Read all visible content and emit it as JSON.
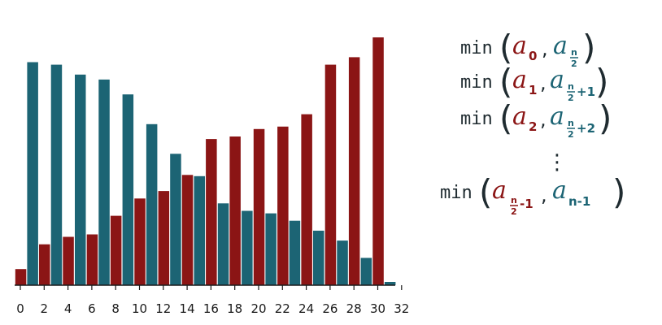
{
  "colors": {
    "teal": "#1c6474",
    "red": "#8b1515",
    "axis": "#1a1a1a",
    "text": "#1f2b30"
  },
  "chart_data": {
    "type": "bar",
    "title": "",
    "xlabel": "",
    "ylabel": "",
    "xlim": [
      0,
      32
    ],
    "xticks": [
      "0",
      "2",
      "4",
      "6",
      "8",
      "10",
      "12",
      "14",
      "16",
      "18",
      "20",
      "22",
      "24",
      "26",
      "28",
      "30",
      "32"
    ],
    "grid": false,
    "series": [
      {
        "color": "teal",
        "x": [
          1,
          3,
          5,
          7,
          9,
          11,
          13,
          15,
          17,
          19,
          21,
          23,
          25,
          27,
          29,
          31
        ],
        "values": [
          90,
          89,
          85,
          83,
          77,
          65,
          53,
          44,
          33,
          30,
          29,
          26,
          22,
          18,
          11,
          1.3
        ]
      },
      {
        "color": "red",
        "x": [
          0,
          2,
          4,
          6,
          8,
          10,
          12,
          14,
          16,
          18,
          20,
          22,
          24,
          26,
          28,
          30
        ],
        "values": [
          6.5,
          16.5,
          19.5,
          20.5,
          28,
          35,
          38,
          44.5,
          59,
          60,
          63,
          64,
          69,
          89,
          92,
          100
        ]
      }
    ]
  },
  "formulas": {
    "fn": "min",
    "rows": [
      {
        "a": "a",
        "i": "0",
        "b": "a",
        "j_num": "n",
        "j_den": "2",
        "j_tail": ""
      },
      {
        "a": "a",
        "i": "1",
        "b": "a",
        "j_num": "n",
        "j_den": "2",
        "j_tail": "+1"
      },
      {
        "a": "a",
        "i": "2",
        "b": "a",
        "j_num": "n",
        "j_den": "2",
        "j_tail": "+2"
      }
    ],
    "ellipsis": "⋮",
    "last": {
      "a": "a",
      "i_num": "n",
      "i_den": "2",
      "i_tail": "-1",
      "b": "a",
      "j": "n-1"
    }
  }
}
